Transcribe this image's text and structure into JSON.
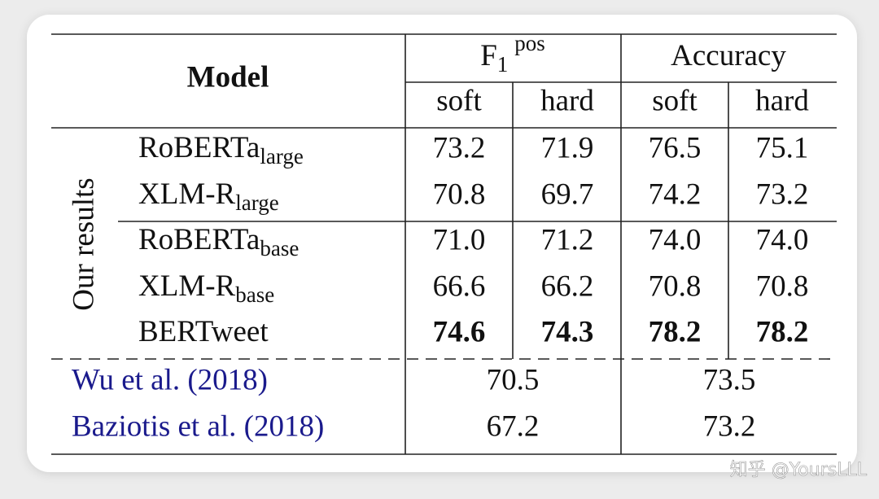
{
  "table": {
    "header": {
      "model": "Model",
      "groups": [
        {
          "parts": [
            "F",
            "1",
            "pos"
          ]
        },
        {
          "parts": [
            "Accuracy"
          ]
        }
      ],
      "subheaders": [
        "soft",
        "hard",
        "soft",
        "hard"
      ]
    },
    "group_label": "Our results",
    "rows": [
      {
        "name": [
          "RoBERTa",
          "large"
        ],
        "cells": [
          "73.2",
          "71.9",
          "76.5",
          "75.1"
        ],
        "bold": false
      },
      {
        "name": [
          "XLM-R",
          "large"
        ],
        "cells": [
          "70.8",
          "69.7",
          "74.2",
          "73.2"
        ],
        "bold": false
      },
      {
        "name": [
          "RoBERTa",
          "base"
        ],
        "cells": [
          "71.0",
          "71.2",
          "74.0",
          "74.0"
        ],
        "bold": false
      },
      {
        "name": [
          "XLM-R",
          "base"
        ],
        "cells": [
          "66.6",
          "66.2",
          "70.8",
          "70.8"
        ],
        "bold": false
      },
      {
        "name": [
          "BERTweet"
        ],
        "cells": [
          "74.6",
          "74.3",
          "78.2",
          "78.2"
        ],
        "bold": true
      }
    ],
    "baselines": [
      {
        "name": "Wu et al. (2018)",
        "cells": [
          "70.5",
          "73.5"
        ],
        "color": "#1a1a8c"
      },
      {
        "name": "Baziotis et al. (2018)",
        "cells": [
          "67.2",
          "73.2"
        ],
        "color": "#1a1a8c"
      }
    ]
  },
  "watermark": "知乎 @YoursLLL"
}
